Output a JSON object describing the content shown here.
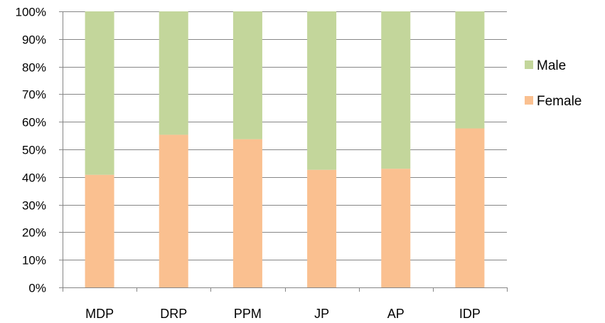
{
  "chart_data": {
    "type": "bar",
    "stacked": true,
    "percent_stacked": true,
    "categories": [
      "MDP",
      "DRP",
      "PPM",
      "JP",
      "AP",
      "IDP"
    ],
    "series": [
      {
        "name": "Female",
        "values": [
          40.8,
          55.3,
          53.7,
          42.6,
          43.0,
          57.6
        ],
        "color": "#FAC090"
      },
      {
        "name": "Male",
        "values": [
          59.2,
          44.7,
          46.3,
          57.4,
          57.0,
          42.4
        ],
        "color": "#C3D69B"
      }
    ],
    "ylim": [
      0,
      100
    ],
    "yticks": [
      "0%",
      "10%",
      "20%",
      "30%",
      "40%",
      "50%",
      "60%",
      "70%",
      "80%",
      "90%",
      "100%"
    ],
    "grid": true,
    "legend_position": "right",
    "legend_order": [
      "Male",
      "Female"
    ],
    "title": "",
    "xlabel": "",
    "ylabel": ""
  }
}
